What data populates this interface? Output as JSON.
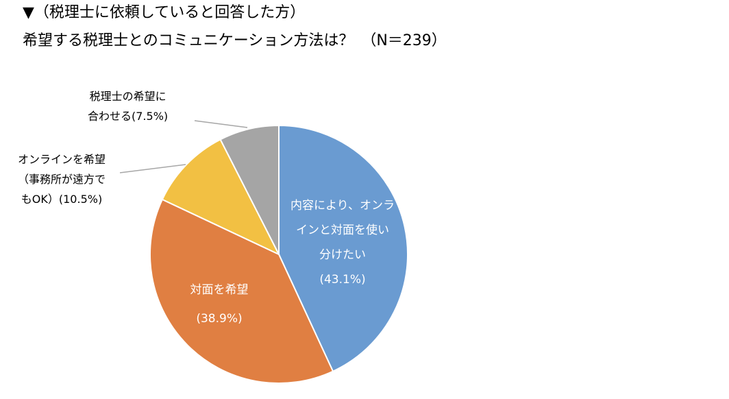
{
  "title": {
    "line1": "▼（税理士に依頼していると回答した方）",
    "line2": "希望する税理士とのコミュニケーション方法は？　（N＝239）"
  },
  "chart_data": {
    "type": "pie",
    "n": 239,
    "slices": [
      {
        "key": "both",
        "label_lines": [
          "内容により、オンラ",
          "インと対面を使い",
          "分けたい"
        ],
        "value_text": "(43.1%)",
        "value": 43.1,
        "color": "#6A9BD1"
      },
      {
        "key": "face",
        "label_lines": [
          "対面を希望"
        ],
        "value_text": "(38.9%)",
        "value": 38.9,
        "color": "#E07F42"
      },
      {
        "key": "online",
        "label_lines": [
          "オンラインを希望",
          "（事務所が遠方で",
          "もOK）(10.5%)"
        ],
        "value_text": "",
        "value": 10.5,
        "color": "#F2C043"
      },
      {
        "key": "adjust",
        "label_lines": [
          "税理士の希望に",
          "合わせる(7.5%)"
        ],
        "value_text": "",
        "value": 7.5,
        "color": "#A5A5A5"
      }
    ]
  },
  "colors": {
    "leader_line": "#A6A6A6",
    "slice_border": "#ffffff"
  }
}
